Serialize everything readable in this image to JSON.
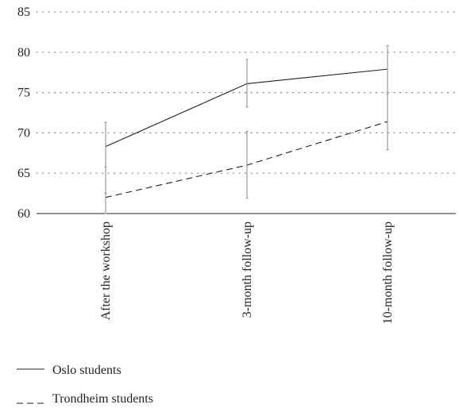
{
  "chart_data": {
    "type": "line",
    "categories": [
      "After the workshop",
      "3-month follow-up",
      "10-month follow-up"
    ],
    "ylim": [
      60,
      85
    ],
    "yticks": [
      60,
      65,
      70,
      75,
      80,
      85
    ],
    "grid": "horizontal dotted",
    "legend_position": "bottom-left",
    "series": [
      {
        "name": "Oslo students",
        "line_style": "solid",
        "values": [
          68.3,
          76.1,
          77.9
        ],
        "error_low": [
          62.5,
          73.2,
          75.0
        ],
        "error_high": [
          71.3,
          79.1,
          80.8
        ]
      },
      {
        "name": "Trondheim students",
        "line_style": "dashed",
        "values": [
          62.0,
          66.0,
          71.4
        ],
        "error_low": [
          60.0,
          61.9,
          67.9
        ],
        "error_high": [
          65.8,
          70.2,
          74.8
        ]
      }
    ],
    "colors": {
      "line": "#231f20",
      "grid": "#8a8a8a"
    }
  }
}
